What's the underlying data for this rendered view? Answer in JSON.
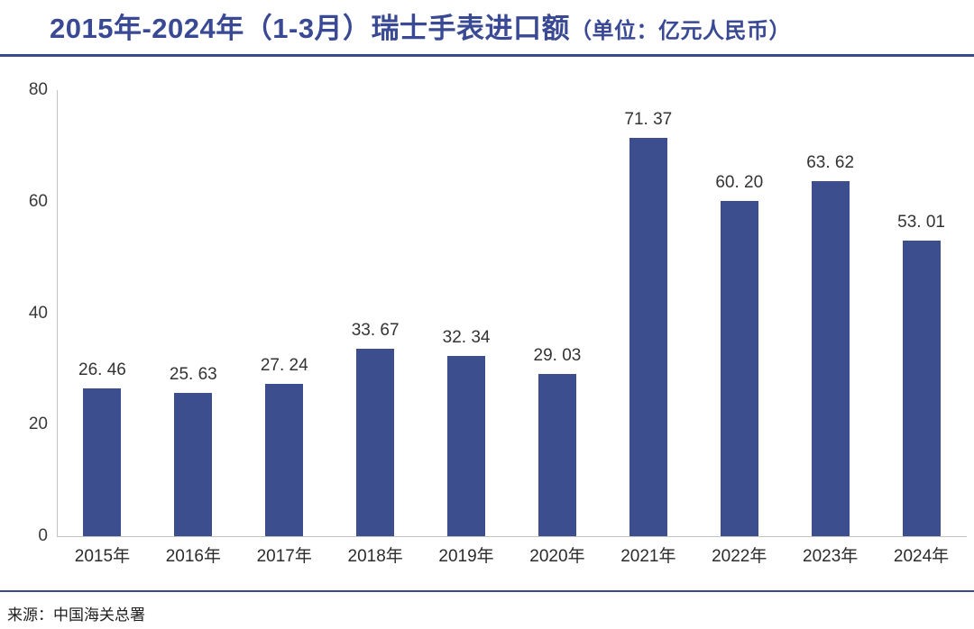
{
  "title": {
    "main": "2015年-2024年（1-3月）瑞士手表进口额",
    "unit": "（单位：亿元人民币）"
  },
  "source": "来源：中国海关总署",
  "colors": {
    "bar": "#3c4e8e",
    "title_text": "#3a4994",
    "divider": "#3a4a8c",
    "axis_line": "#c3c3c3"
  },
  "chart_data": {
    "type": "bar",
    "title": "2015年-2024年（1-3月）瑞士手表进口额",
    "unit_label": "亿元人民币",
    "categories": [
      "2015年",
      "2016年",
      "2017年",
      "2018年",
      "2019年",
      "2020年",
      "2021年",
      "2022年",
      "2023年",
      "2024年"
    ],
    "values": [
      26.46,
      25.63,
      27.24,
      33.67,
      32.34,
      29.03,
      71.37,
      60.2,
      63.62,
      53.01
    ],
    "value_labels": [
      "26. 46",
      "25. 63",
      "27. 24",
      "33. 67",
      "32. 34",
      "29. 03",
      "71. 37",
      "60. 20",
      "63. 62",
      "53. 01"
    ],
    "xlabel": "",
    "ylabel": "",
    "ylim": [
      0,
      80
    ],
    "yticks": [
      0,
      20,
      40,
      60,
      80
    ],
    "grid": false,
    "legend": false,
    "bar_color": "#3c4e8e"
  }
}
